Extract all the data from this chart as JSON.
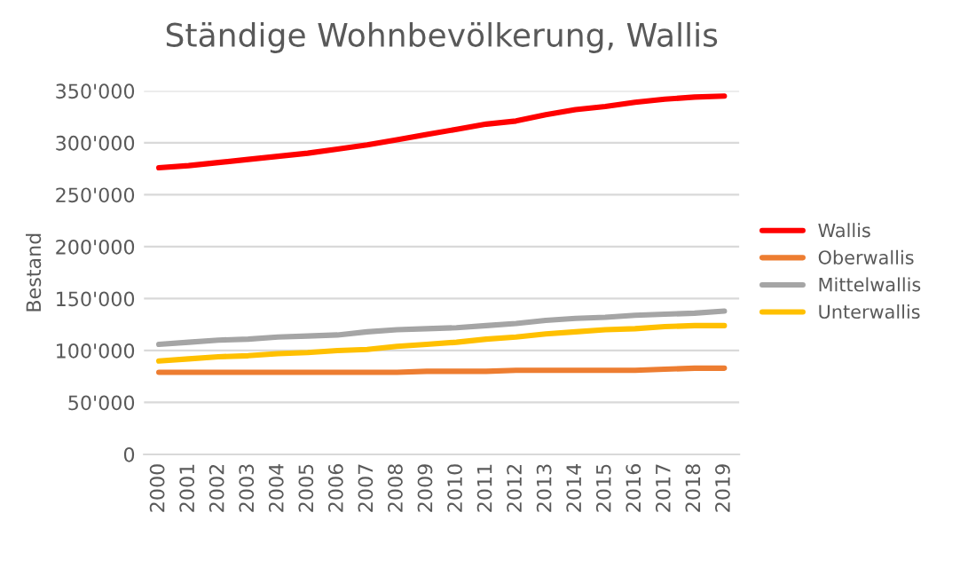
{
  "chart_data": {
    "type": "line",
    "title": "Ständige Wohnbevölkerung, Wallis",
    "ylabel": "Bestand",
    "categories": [
      "2000",
      "2001",
      "2002",
      "2003",
      "2004",
      "2005",
      "2006",
      "2007",
      "2008",
      "2009",
      "2010",
      "2011",
      "2012",
      "2013",
      "2014",
      "2015",
      "2016",
      "2017",
      "2018",
      "2019"
    ],
    "series": [
      {
        "name": "Wallis",
        "color": "#ff0000",
        "values": [
          276000,
          278000,
          281000,
          284000,
          287000,
          290000,
          294000,
          298000,
          303000,
          308000,
          313000,
          318000,
          321000,
          327000,
          332000,
          335000,
          339000,
          342000,
          344000,
          345000
        ]
      },
      {
        "name": "Oberwallis",
        "color": "#ed7d31",
        "values": [
          79000,
          79000,
          79000,
          79000,
          79000,
          79000,
          79000,
          79000,
          79000,
          80000,
          80000,
          80000,
          81000,
          81000,
          81000,
          81000,
          81000,
          82000,
          83000,
          83000
        ]
      },
      {
        "name": "Mittelwallis",
        "color": "#a5a5a5",
        "values": [
          106000,
          108000,
          110000,
          111000,
          113000,
          114000,
          115000,
          118000,
          120000,
          121000,
          122000,
          124000,
          126000,
          129000,
          131000,
          132000,
          134000,
          135000,
          136000,
          138000
        ]
      },
      {
        "name": "Unterwallis",
        "color": "#ffc000",
        "values": [
          90000,
          92000,
          94000,
          95000,
          97000,
          98000,
          100000,
          101000,
          104000,
          106000,
          108000,
          111000,
          113000,
          116000,
          118000,
          120000,
          121000,
          123000,
          124000,
          124000
        ]
      }
    ],
    "ylim": [
      0,
      350000
    ],
    "yticks": [
      0,
      {
        "value": 50000,
        "label": "50'000"
      },
      {
        "value": 100000,
        "label": "100'000"
      },
      {
        "value": 150000,
        "label": "150'000"
      },
      {
        "value": 200000,
        "label": "200'000"
      },
      {
        "value": 250000,
        "label": "250'000"
      },
      {
        "value": 300000,
        "label": "300'000"
      },
      {
        "value": 350000,
        "label": "350'000"
      }
    ],
    "grid": "y",
    "legend": "right",
    "marker": "none",
    "line_style": "solid"
  }
}
